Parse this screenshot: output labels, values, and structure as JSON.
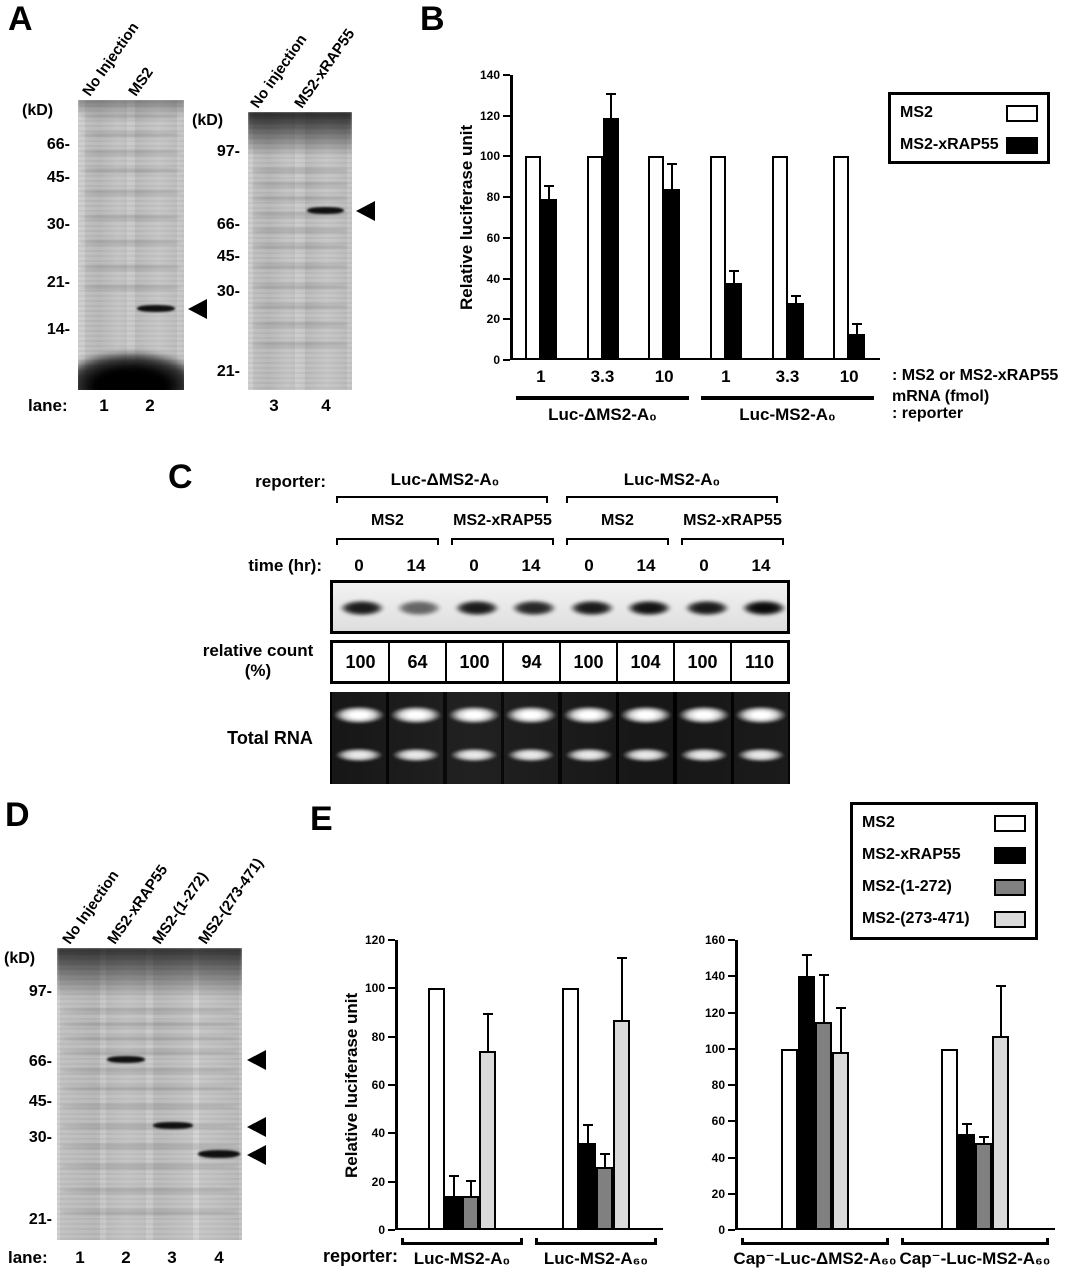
{
  "panelA": {
    "label": "A",
    "gel1": {
      "kd": "(kD)",
      "col_labels": [
        "No Injection",
        "MS2"
      ],
      "markers": [
        "66-",
        "45-",
        "30-",
        "21-",
        "14-"
      ],
      "lane_caption": "lane:",
      "lane_numbers": [
        "1",
        "2"
      ]
    },
    "gel2": {
      "kd": "(kD)",
      "col_labels": [
        "No injection",
        "MS2-xRAP55"
      ],
      "markers": [
        "97-",
        "66-",
        "45-",
        "30-",
        "21-"
      ],
      "lane_numbers": [
        "3",
        "4"
      ]
    }
  },
  "panelB": {
    "label": "B",
    "legend": [
      {
        "label": "MS2",
        "color": "#ffffff"
      },
      {
        "label": "MS2-xRAP55",
        "color": "#000000"
      }
    ]
  },
  "panelC": {
    "label": "C",
    "reporter_caption": "reporter:",
    "reporter_groups": [
      "Luc-ΔMS2-A₀",
      "Luc-MS2-A₀"
    ],
    "conditions": [
      "MS2",
      "MS2-xRAP55",
      "MS2",
      "MS2-xRAP55"
    ],
    "time_caption": "time (hr):",
    "times": [
      "0",
      "14",
      "0",
      "14",
      "0",
      "14",
      "0",
      "14"
    ],
    "count_caption_line1": "relative count",
    "count_caption_line2": "(%)",
    "counts": [
      "100",
      "64",
      "100",
      "94",
      "100",
      "104",
      "100",
      "110"
    ],
    "total_rna_caption": "Total RNA"
  },
  "panelD": {
    "label": "D",
    "kd": "(kD)",
    "col_labels": [
      "No Injection",
      "MS2-xRAP55",
      "MS2-(1-272)",
      "MS2-(273-471)"
    ],
    "markers": [
      "97-",
      "66-",
      "45-",
      "30-",
      "21-"
    ],
    "lane_caption": "lane:",
    "lane_numbers": [
      "1",
      "2",
      "3",
      "4"
    ]
  },
  "panelE": {
    "label": "E",
    "reporter_caption": "reporter:",
    "legend": [
      {
        "label": "MS2",
        "color": "#ffffff"
      },
      {
        "label": "MS2-xRAP55",
        "color": "#000000"
      },
      {
        "label": "MS2-(1-272)",
        "color": "#808080"
      },
      {
        "label": "MS2-(273-471)",
        "color": "#d9d9d9"
      }
    ]
  },
  "chart_data": [
    {
      "id": "B",
      "type": "bar",
      "ylabel": "Relative luciferase unit",
      "ylim": [
        0,
        140
      ],
      "ytick_step": 20,
      "categories": [
        "1",
        "3.3",
        "10",
        "1",
        "3.3",
        "10"
      ],
      "series": [
        {
          "name": "MS2",
          "color": "#ffffff",
          "values": [
            100,
            100,
            100,
            100,
            100,
            100
          ],
          "errors": [
            0,
            0,
            0,
            0,
            0,
            0
          ]
        },
        {
          "name": "MS2-xRAP55",
          "color": "#000000",
          "values": [
            79,
            119,
            84,
            38,
            28,
            13
          ],
          "errors": [
            6,
            11,
            12,
            5,
            3,
            4
          ]
        }
      ],
      "group_brackets": [
        {
          "label": "Luc-ΔMS2-A₀",
          "from": 0,
          "to": 2
        },
        {
          "label": "Luc-MS2-A₀",
          "from": 3,
          "to": 5
        }
      ],
      "right_annotations": [
        ": MS2 or MS2-xRAP55",
        "mRNA (fmol)",
        ": reporter"
      ],
      "legend_position": "top-right"
    },
    {
      "id": "E-left",
      "type": "bar",
      "ylabel": "Relative luciferase unit",
      "ylim": [
        0,
        120
      ],
      "ytick_step": 20,
      "series": [
        {
          "name": "MS2",
          "color": "#ffffff",
          "values": [
            100,
            100
          ],
          "errors": [
            0,
            0
          ]
        },
        {
          "name": "MS2-xRAP55",
          "color": "#000000",
          "values": [
            14,
            36
          ],
          "errors": [
            8,
            7
          ]
        },
        {
          "name": "MS2-(1-272)",
          "color": "#808080",
          "values": [
            14,
            26
          ],
          "errors": [
            6,
            5
          ]
        },
        {
          "name": "MS2-(273-471)",
          "color": "#d9d9d9",
          "values": [
            74,
            87
          ],
          "errors": [
            15,
            25
          ]
        }
      ],
      "group_brackets": [
        {
          "label": "Luc-MS2-A₀",
          "from": 0,
          "to": 0
        },
        {
          "label": "Luc-MS2-A₆₀",
          "from": 1,
          "to": 1
        }
      ]
    },
    {
      "id": "E-right",
      "type": "bar",
      "ylim": [
        0,
        160
      ],
      "ytick_step": 20,
      "series": [
        {
          "name": "MS2",
          "color": "#ffffff",
          "values": [
            100,
            100
          ],
          "errors": [
            0,
            0
          ]
        },
        {
          "name": "MS2-xRAP55",
          "color": "#000000",
          "values": [
            140,
            53
          ],
          "errors": [
            11,
            5
          ]
        },
        {
          "name": "MS2-(1-272)",
          "color": "#808080",
          "values": [
            115,
            48
          ],
          "errors": [
            25,
            3
          ]
        },
        {
          "name": "MS2-(273-471)",
          "color": "#d9d9d9",
          "values": [
            98,
            107
          ],
          "errors": [
            24,
            27
          ]
        }
      ],
      "group_brackets": [
        {
          "label": "Cap⁻-Luc-ΔMS2-A₆₀",
          "from": 0,
          "to": 0
        },
        {
          "label": "Cap⁻-Luc-MS2-A₆₀",
          "from": 1,
          "to": 1
        }
      ]
    }
  ]
}
